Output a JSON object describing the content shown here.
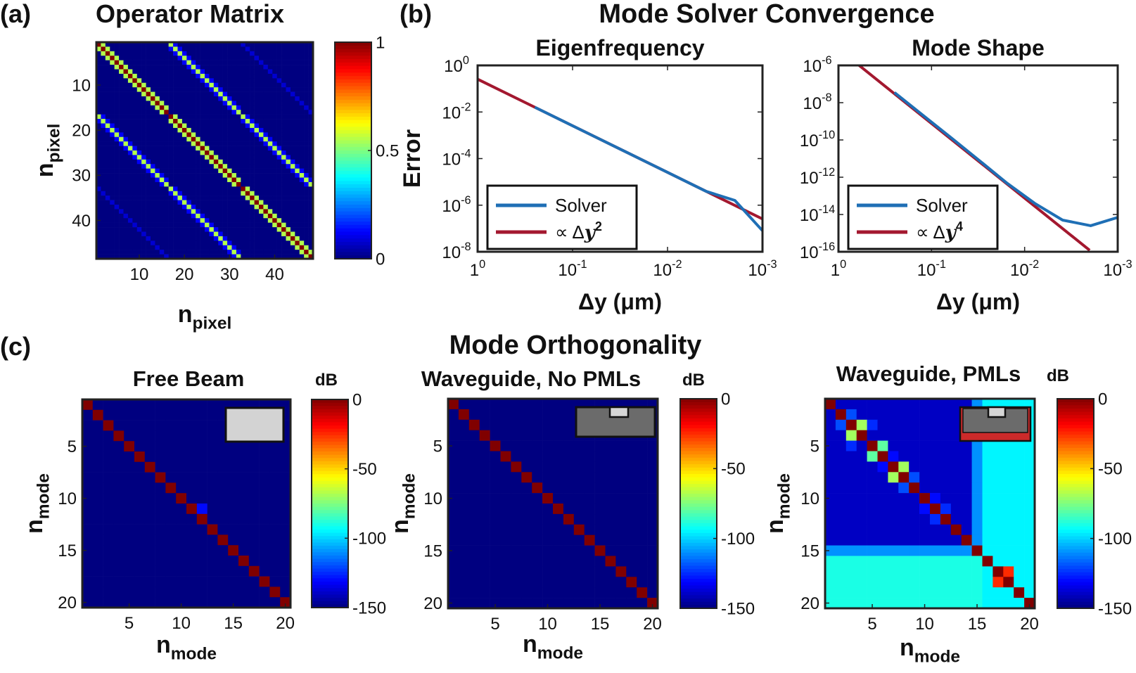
{
  "panel_labels": {
    "a": "(a)",
    "b": "(b)",
    "c": "(c)"
  },
  "section_titles": {
    "b": "Mode Solver Convergence",
    "c": "Mode Orthogonality"
  },
  "chart_data": [
    {
      "id": "operator-matrix",
      "type": "heatmap",
      "title": "Operator Matrix",
      "xlabel_main": "n",
      "xlabel_sub": "pixel",
      "ylabel_main": "n",
      "ylabel_sub": "pixel",
      "size": 48,
      "xticks": [
        10,
        20,
        30,
        40
      ],
      "yticks": [
        10,
        20,
        30,
        40
      ],
      "colorbar": {
        "min": 0,
        "max": 1,
        "ticks": [
          0,
          0.5,
          1
        ]
      },
      "bands": [
        {
          "segments": [
            [
              1,
              16
            ],
            [
              17,
              32
            ],
            [
              33,
              48
            ]
          ],
          "offset": 0,
          "value": 1.0
        },
        {
          "segments": [
            [
              1,
              15
            ],
            [
              17,
              31
            ],
            [
              33,
              47
            ]
          ],
          "offset": 1,
          "value": 0.55
        },
        {
          "segments": [
            [
              2,
              16
            ],
            [
              18,
              32
            ],
            [
              34,
              48
            ]
          ],
          "offset": -1,
          "value": 0.55
        },
        {
          "segments": [
            [
              1,
              32
            ]
          ],
          "offset": 16,
          "value": 0.55
        },
        {
          "segments": [
            [
              17,
              48
            ]
          ],
          "offset": -16,
          "value": 0.55
        },
        {
          "segments": [
            [
              1,
              15
            ],
            [
              17,
              31
            ]
          ],
          "offset": 17,
          "value": 0.12
        },
        {
          "segments": [
            [
              2,
              16
            ],
            [
              18,
              32
            ]
          ],
          "offset": 15,
          "value": 0.12
        },
        {
          "segments": [
            [
              17,
              31
            ],
            [
              33,
              47
            ]
          ],
          "offset": -15,
          "value": 0.12
        },
        {
          "segments": [
            [
              18,
              32
            ],
            [
              34,
              48
            ]
          ],
          "offset": -17,
          "value": 0.12
        },
        {
          "segments": [
            [
              1,
              16
            ]
          ],
          "offset": 32,
          "value": 0.08
        },
        {
          "segments": [
            [
              33,
              48
            ]
          ],
          "offset": -32,
          "value": 0.08
        }
      ]
    },
    {
      "id": "eigenfrequency",
      "type": "line",
      "title": "Eigenfrequency",
      "xlabel": "Δy (μm)",
      "ylabel": "Error",
      "x_log": true,
      "y_log": true,
      "x_reversed": true,
      "xlim": [
        1,
        0.001
      ],
      "ylim": [
        1e-08,
        1
      ],
      "xtick_labels": [
        [
          "1",
          "0"
        ],
        [
          "10",
          "-1"
        ],
        [
          "10",
          "-2"
        ],
        [
          "10",
          "-3"
        ]
      ],
      "ytick_labels": [
        [
          "10",
          "0"
        ],
        [
          "10",
          "-2"
        ],
        [
          "10",
          "-4"
        ],
        [
          "10",
          "-6"
        ],
        [
          "10",
          "-8"
        ]
      ],
      "legend_placement": "bottom-left",
      "series": [
        {
          "name": "Solver",
          "color": "#1f6fb5",
          "x": [
            0.25,
            0.125,
            0.0625,
            0.03125,
            0.015625,
            0.0078125,
            0.00390625,
            0.001953125,
            0.001
          ],
          "y": [
            0.016,
            0.004,
            0.001,
            0.00025,
            6.25e-05,
            1.56e-05,
            3.9e-06,
            1.6e-06,
            8e-08
          ]
        },
        {
          "name_prefix": "∝ Δ",
          "name_var": "y",
          "name_exp": "2",
          "color": "#a3182f",
          "x": [
            1,
            0.001
          ],
          "y": [
            0.256,
            2.56e-07
          ]
        }
      ]
    },
    {
      "id": "mode-shape",
      "type": "line",
      "title": "Mode Shape",
      "xlabel": "Δy (μm)",
      "x_log": true,
      "y_log": true,
      "x_reversed": true,
      "xlim": [
        1,
        0.001
      ],
      "ylim": [
        1e-16,
        1e-06
      ],
      "xtick_labels": [
        [
          "1",
          "0"
        ],
        [
          "10",
          "-1"
        ],
        [
          "10",
          "-2"
        ],
        [
          "10",
          "-3"
        ]
      ],
      "ytick_labels": [
        [
          "10",
          "-6"
        ],
        [
          "10",
          "-8"
        ],
        [
          "10",
          "-10"
        ],
        [
          "10",
          "-12"
        ],
        [
          "10",
          "-14"
        ],
        [
          "10",
          "-16"
        ]
      ],
      "legend_placement": "bottom-left",
      "series": [
        {
          "name": "Solver",
          "color": "#1f6fb5",
          "x": [
            0.25,
            0.125,
            0.0625,
            0.03125,
            0.015625,
            0.0078125,
            0.00390625,
            0.001953125,
            0.001
          ],
          "y": [
            3.5e-08,
            2.2e-09,
            1.4e-10,
            8.5e-12,
            5e-13,
            4e-14,
            5e-15,
            2.5e-15,
            7e-15
          ]
        },
        {
          "name_prefix": "∝ Δ",
          "name_var": "y",
          "name_exp": "4",
          "color": "#a3182f",
          "x": [
            0.6,
            0.002
          ],
          "y": [
            1e-06,
            1.2e-16
          ]
        }
      ]
    },
    {
      "id": "free-beam",
      "type": "heatmap",
      "title": "Free Beam",
      "xlabel_main": "n",
      "xlabel_sub": "mode",
      "ylabel_main": "n",
      "ylabel_sub": "mode",
      "size": 20,
      "xticks": [
        5,
        10,
        15,
        20
      ],
      "yticks": [
        5,
        10,
        15,
        20
      ],
      "colorbar": {
        "label": "dB",
        "min": -150,
        "max": 0,
        "ticks": [
          0,
          -50,
          -100,
          -150
        ]
      },
      "background": -150,
      "diagonal": 0,
      "cells": [
        [
          11,
          12,
          -130
        ]
      ],
      "inset": "free-beam"
    },
    {
      "id": "waveguide-no-pml",
      "type": "heatmap",
      "title": "Waveguide, No PMLs",
      "xlabel_main": "n",
      "xlabel_sub": "mode",
      "ylabel_main": "n",
      "ylabel_sub": "mode",
      "size": 20,
      "xticks": [
        5,
        10,
        15,
        20
      ],
      "yticks": [
        5,
        10,
        15,
        20
      ],
      "colorbar": {
        "label": "dB",
        "min": -150,
        "max": 0,
        "ticks": [
          0,
          -50,
          -100,
          -150
        ]
      },
      "background": -150,
      "diagonal": 0,
      "cells": [],
      "inset": "waveguide"
    },
    {
      "id": "waveguide-pml",
      "type": "heatmap",
      "title": "Waveguide, PMLs",
      "xlabel_main": "n",
      "xlabel_sub": "mode",
      "ylabel_main": "n",
      "ylabel_sub": "mode",
      "size": 20,
      "xticks": [
        5,
        10,
        15,
        20
      ],
      "yticks": [
        5,
        10,
        15,
        20
      ],
      "colorbar": {
        "label": "dB",
        "min": -150,
        "max": 0,
        "ticks": [
          0,
          -50,
          -100,
          -150
        ]
      },
      "background": -140,
      "diagonal": 0,
      "cells": [
        [
          3,
          4,
          -70
        ],
        [
          4,
          3,
          -70
        ],
        [
          5,
          6,
          -80
        ],
        [
          6,
          5,
          -80
        ],
        [
          7,
          8,
          -70
        ],
        [
          8,
          7,
          -70
        ],
        [
          10,
          11,
          -130
        ],
        [
          11,
          10,
          -130
        ],
        [
          11,
          12,
          -125
        ],
        [
          12,
          11,
          -125
        ],
        [
          3,
          5,
          -125
        ],
        [
          5,
          3,
          -125
        ],
        [
          2,
          3,
          -120
        ],
        [
          3,
          2,
          -120
        ],
        [
          6,
          7,
          -130
        ],
        [
          7,
          6,
          -130
        ],
        [
          8,
          9,
          -120
        ],
        [
          9,
          8,
          -120
        ]
      ],
      "col_bands": [
        {
          "cols": [
            16,
            17,
            18,
            19,
            20
          ],
          "rows": [
            1,
            20
          ],
          "value": -95
        }
      ],
      "row_bands": [
        {
          "rows": [
            16,
            17,
            18,
            19,
            20
          ],
          "cols": [
            1,
            15
          ],
          "value": -90
        }
      ],
      "block_bands": [
        {
          "rows": [
            15,
            15
          ],
          "cols": [
            1,
            15
          ],
          "value": -110
        },
        {
          "rows": [
            1,
            14
          ],
          "cols": [
            15,
            15
          ],
          "value": -110
        },
        {
          "rows": [
            17,
            18
          ],
          "cols": [
            17,
            18
          ],
          "value": -25
        }
      ],
      "inset": "waveguide-pml"
    }
  ]
}
